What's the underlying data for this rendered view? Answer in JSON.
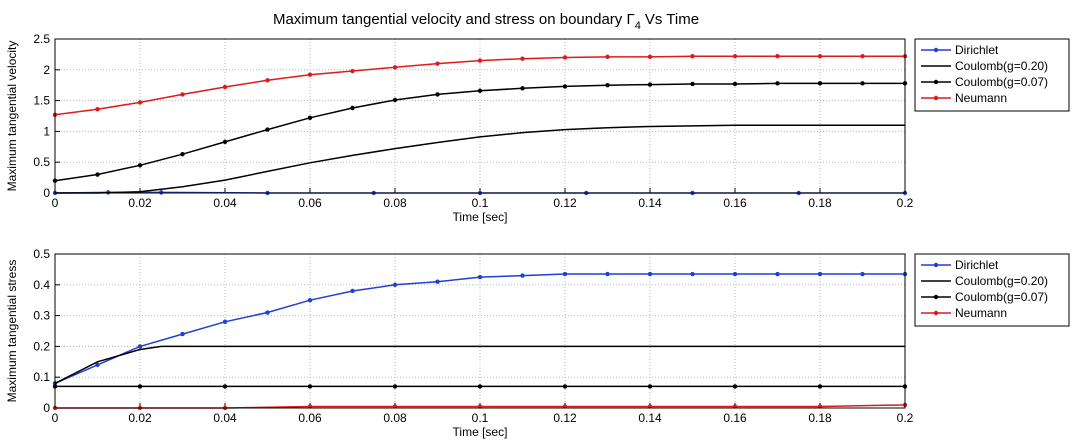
{
  "chart_data": [
    {
      "type": "line",
      "title": "Maximum tangential velocity and stress on boundary",
      "title_symbol": "Γ",
      "title_subscript": "4",
      "title_suffix": "Vs Time",
      "xlabel": "Time [sec]",
      "ylabel": "Maximum tangential velocity",
      "xlim": [
        0,
        0.2
      ],
      "ylim": [
        0,
        2.5
      ],
      "xticks": [
        "0",
        "0.02",
        "0.04",
        "0.06",
        "0.08",
        "0.1",
        "0.12",
        "0.14",
        "0.16",
        "0.18",
        "0.2"
      ],
      "yticks": [
        "0",
        "0.5",
        "1",
        "1.5",
        "2",
        "2.5"
      ],
      "grid": true,
      "legend_position": "outside-right",
      "series": [
        {
          "name": "Dirichlet",
          "color": "#1f3fd6",
          "marker": true,
          "x": [
            0,
            0.0125,
            0.025,
            0.05,
            0.075,
            0.1,
            0.125,
            0.15,
            0.175,
            0.2
          ],
          "y": [
            0,
            0.01,
            0.01,
            0.0,
            0.0,
            0.0,
            0.0,
            0.0,
            0.0,
            0.0
          ]
        },
        {
          "name": "Coulomb(g=0.20)",
          "color": "#000000",
          "marker": false,
          "x": [
            0,
            0.01,
            0.02,
            0.03,
            0.04,
            0.05,
            0.06,
            0.07,
            0.08,
            0.09,
            0.1,
            0.11,
            0.12,
            0.13,
            0.14,
            0.15,
            0.16,
            0.17,
            0.18,
            0.19,
            0.2
          ],
          "y": [
            0,
            0.0,
            0.02,
            0.1,
            0.21,
            0.35,
            0.49,
            0.61,
            0.72,
            0.82,
            0.91,
            0.98,
            1.03,
            1.06,
            1.08,
            1.09,
            1.1,
            1.1,
            1.1,
            1.1,
            1.1
          ]
        },
        {
          "name": "Coulomb(g=0.07)",
          "color": "#000000",
          "marker": true,
          "x": [
            0,
            0.01,
            0.02,
            0.03,
            0.04,
            0.05,
            0.06,
            0.07,
            0.08,
            0.09,
            0.1,
            0.11,
            0.12,
            0.13,
            0.14,
            0.15,
            0.16,
            0.17,
            0.18,
            0.19,
            0.2
          ],
          "y": [
            0.2,
            0.3,
            0.45,
            0.63,
            0.83,
            1.03,
            1.22,
            1.38,
            1.51,
            1.6,
            1.66,
            1.7,
            1.73,
            1.75,
            1.76,
            1.77,
            1.77,
            1.78,
            1.78,
            1.78,
            1.78
          ]
        },
        {
          "name": "Neumann",
          "color": "#e01a1a",
          "marker": true,
          "x": [
            0,
            0.01,
            0.02,
            0.03,
            0.04,
            0.05,
            0.06,
            0.07,
            0.08,
            0.09,
            0.1,
            0.11,
            0.12,
            0.13,
            0.14,
            0.15,
            0.16,
            0.17,
            0.18,
            0.19,
            0.2
          ],
          "y": [
            1.27,
            1.36,
            1.47,
            1.6,
            1.72,
            1.83,
            1.92,
            1.98,
            2.04,
            2.1,
            2.15,
            2.18,
            2.2,
            2.21,
            2.21,
            2.22,
            2.22,
            2.22,
            2.22,
            2.22,
            2.22
          ]
        }
      ]
    },
    {
      "type": "line",
      "title": "",
      "xlabel": "Time [sec]",
      "ylabel": "Maximum tangential stress",
      "xlim": [
        0,
        0.2
      ],
      "ylim": [
        0,
        0.5
      ],
      "xticks": [
        "0",
        "0.02",
        "0.04",
        "0.06",
        "0.08",
        "0.1",
        "0.12",
        "0.14",
        "0.16",
        "0.18",
        "0.2"
      ],
      "yticks": [
        "0",
        "0.1",
        "0.2",
        "0.3",
        "0.4",
        "0.5"
      ],
      "grid": true,
      "legend_position": "outside-right",
      "series": [
        {
          "name": "Dirichlet",
          "color": "#1f3fd6",
          "marker": true,
          "x": [
            0,
            0.01,
            0.02,
            0.03,
            0.04,
            0.05,
            0.06,
            0.07,
            0.08,
            0.09,
            0.1,
            0.11,
            0.12,
            0.13,
            0.14,
            0.15,
            0.16,
            0.17,
            0.18,
            0.19,
            0.2
          ],
          "y": [
            0.08,
            0.14,
            0.2,
            0.24,
            0.28,
            0.31,
            0.35,
            0.38,
            0.4,
            0.41,
            0.425,
            0.43,
            0.435,
            0.435,
            0.435,
            0.435,
            0.435,
            0.435,
            0.435,
            0.435,
            0.435
          ]
        },
        {
          "name": "Coulomb(g=0.20)",
          "color": "#000000",
          "marker": false,
          "x": [
            0,
            0.01,
            0.02,
            0.025,
            0.05,
            0.1,
            0.15,
            0.2
          ],
          "y": [
            0.08,
            0.15,
            0.19,
            0.2,
            0.2,
            0.2,
            0.2,
            0.2
          ]
        },
        {
          "name": "Coulomb(g=0.07)",
          "color": "#000000",
          "marker": true,
          "x": [
            0,
            0.02,
            0.04,
            0.06,
            0.08,
            0.1,
            0.12,
            0.14,
            0.16,
            0.18,
            0.2
          ],
          "y": [
            0.07,
            0.07,
            0.07,
            0.07,
            0.07,
            0.07,
            0.07,
            0.07,
            0.07,
            0.07,
            0.07
          ]
        },
        {
          "name": "Neumann",
          "color": "#e01a1a",
          "marker": true,
          "x": [
            0,
            0.02,
            0.04,
            0.06,
            0.08,
            0.1,
            0.12,
            0.14,
            0.16,
            0.18,
            0.2
          ],
          "y": [
            0.0,
            0.0,
            0.0,
            0.005,
            0.005,
            0.005,
            0.005,
            0.005,
            0.005,
            0.005,
            0.01
          ]
        }
      ]
    }
  ]
}
